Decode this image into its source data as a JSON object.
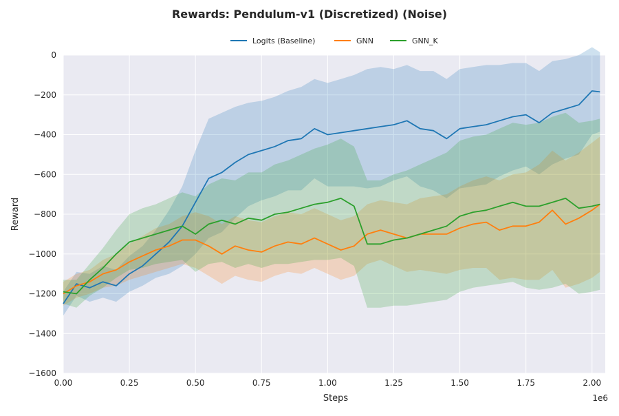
{
  "chart_data": {
    "type": "line",
    "title": "Rewards: Pendulum-v1 (Discretized) (Noise)",
    "xlabel": "Steps",
    "ylabel": "Reward",
    "x_offset_label": "1e6",
    "xlim": [
      0,
      2.05
    ],
    "ylim": [
      -1600,
      0
    ],
    "x_ticks": [
      0,
      0.25,
      0.5,
      0.75,
      1.0,
      1.25,
      1.5,
      1.75,
      2.0
    ],
    "x_tick_labels": [
      "0.00",
      "0.25",
      "0.50",
      "0.75",
      "1.00",
      "1.25",
      "1.50",
      "1.75",
      "2.00"
    ],
    "y_ticks": [
      0,
      -200,
      -400,
      -600,
      -800,
      -1000,
      -1200,
      -1400,
      -1600
    ],
    "y_tick_labels": [
      "0",
      "−200",
      "−400",
      "−600",
      "−800",
      "−1000",
      "−1200",
      "−1400",
      "−1600"
    ],
    "grid": true,
    "legend_position": "top-center",
    "background": "#eaeaf2",
    "series": [
      {
        "name": "Logits (Baseline)",
        "color": "#1f77b4",
        "points": [
          [
            0.0,
            -1250
          ],
          [
            0.05,
            -1150
          ],
          [
            0.1,
            -1170
          ],
          [
            0.15,
            -1140
          ],
          [
            0.2,
            -1160
          ],
          [
            0.25,
            -1100
          ],
          [
            0.3,
            -1060
          ],
          [
            0.35,
            -1000
          ],
          [
            0.4,
            -940
          ],
          [
            0.45,
            -860
          ],
          [
            0.5,
            -740
          ],
          [
            0.55,
            -620
          ],
          [
            0.6,
            -590
          ],
          [
            0.65,
            -540
          ],
          [
            0.7,
            -500
          ],
          [
            0.75,
            -480
          ],
          [
            0.8,
            -460
          ],
          [
            0.85,
            -430
          ],
          [
            0.9,
            -420
          ],
          [
            0.95,
            -370
          ],
          [
            1.0,
            -400
          ],
          [
            1.05,
            -390
          ],
          [
            1.1,
            -380
          ],
          [
            1.15,
            -370
          ],
          [
            1.2,
            -360
          ],
          [
            1.25,
            -350
          ],
          [
            1.3,
            -330
          ],
          [
            1.35,
            -370
          ],
          [
            1.4,
            -380
          ],
          [
            1.45,
            -420
          ],
          [
            1.5,
            -370
          ],
          [
            1.55,
            -360
          ],
          [
            1.6,
            -350
          ],
          [
            1.65,
            -330
          ],
          [
            1.7,
            -310
          ],
          [
            1.75,
            -300
          ],
          [
            1.8,
            -340
          ],
          [
            1.85,
            -290
          ],
          [
            1.9,
            -270
          ],
          [
            1.95,
            -250
          ],
          [
            2.0,
            -180
          ],
          [
            2.03,
            -185
          ]
        ],
        "band_width": [
          60,
          60,
          70,
          80,
          80,
          90,
          100,
          120,
          160,
          200,
          260,
          300,
          300,
          280,
          260,
          250,
          250,
          250,
          260,
          250,
          260,
          270,
          280,
          300,
          300,
          280,
          280,
          290,
          300,
          300,
          300,
          300,
          300,
          280,
          270,
          260,
          260,
          260,
          250,
          250,
          220,
          200
        ]
      },
      {
        "name": "GNN",
        "color": "#ff7f0e",
        "points": [
          [
            0.0,
            -1200
          ],
          [
            0.05,
            -1160
          ],
          [
            0.1,
            -1140
          ],
          [
            0.15,
            -1100
          ],
          [
            0.2,
            -1080
          ],
          [
            0.25,
            -1040
          ],
          [
            0.3,
            -1010
          ],
          [
            0.35,
            -980
          ],
          [
            0.4,
            -960
          ],
          [
            0.45,
            -930
          ],
          [
            0.5,
            -930
          ],
          [
            0.55,
            -960
          ],
          [
            0.6,
            -1000
          ],
          [
            0.65,
            -960
          ],
          [
            0.7,
            -980
          ],
          [
            0.75,
            -990
          ],
          [
            0.8,
            -960
          ],
          [
            0.85,
            -940
          ],
          [
            0.9,
            -950
          ],
          [
            0.95,
            -920
          ],
          [
            1.0,
            -950
          ],
          [
            1.05,
            -980
          ],
          [
            1.1,
            -960
          ],
          [
            1.15,
            -900
          ],
          [
            1.2,
            -880
          ],
          [
            1.25,
            -900
          ],
          [
            1.3,
            -920
          ],
          [
            1.35,
            -900
          ],
          [
            1.4,
            -900
          ],
          [
            1.45,
            -900
          ],
          [
            1.5,
            -870
          ],
          [
            1.55,
            -850
          ],
          [
            1.6,
            -840
          ],
          [
            1.65,
            -880
          ],
          [
            1.7,
            -860
          ],
          [
            1.75,
            -860
          ],
          [
            1.8,
            -840
          ],
          [
            1.85,
            -780
          ],
          [
            1.9,
            -850
          ],
          [
            1.95,
            -820
          ],
          [
            2.0,
            -780
          ],
          [
            2.03,
            -750
          ]
        ],
        "band_width": [
          60,
          60,
          60,
          70,
          80,
          90,
          100,
          110,
          110,
          120,
          140,
          150,
          150,
          150,
          150,
          150,
          150,
          150,
          150,
          150,
          150,
          150,
          150,
          150,
          150,
          160,
          170,
          180,
          190,
          200,
          210,
          220,
          230,
          250,
          260,
          270,
          290,
          300,
          320,
          330,
          340,
          340
        ]
      },
      {
        "name": "GNN_K",
        "color": "#2ca02c",
        "points": [
          [
            0.0,
            -1190
          ],
          [
            0.05,
            -1200
          ],
          [
            0.1,
            -1130
          ],
          [
            0.15,
            -1070
          ],
          [
            0.2,
            -1000
          ],
          [
            0.25,
            -940
          ],
          [
            0.3,
            -920
          ],
          [
            0.35,
            -900
          ],
          [
            0.4,
            -880
          ],
          [
            0.45,
            -860
          ],
          [
            0.5,
            -900
          ],
          [
            0.55,
            -850
          ],
          [
            0.6,
            -830
          ],
          [
            0.65,
            -850
          ],
          [
            0.7,
            -820
          ],
          [
            0.75,
            -830
          ],
          [
            0.8,
            -800
          ],
          [
            0.85,
            -790
          ],
          [
            0.9,
            -770
          ],
          [
            0.95,
            -750
          ],
          [
            1.0,
            -740
          ],
          [
            1.05,
            -720
          ],
          [
            1.1,
            -760
          ],
          [
            1.15,
            -950
          ],
          [
            1.2,
            -950
          ],
          [
            1.25,
            -930
          ],
          [
            1.3,
            -920
          ],
          [
            1.35,
            -900
          ],
          [
            1.4,
            -880
          ],
          [
            1.45,
            -860
          ],
          [
            1.5,
            -810
          ],
          [
            1.55,
            -790
          ],
          [
            1.6,
            -780
          ],
          [
            1.65,
            -760
          ],
          [
            1.7,
            -740
          ],
          [
            1.75,
            -760
          ],
          [
            1.8,
            -760
          ],
          [
            1.85,
            -740
          ],
          [
            1.9,
            -720
          ],
          [
            1.95,
            -770
          ],
          [
            2.0,
            -760
          ],
          [
            2.03,
            -750
          ]
        ],
        "band_width": [
          60,
          70,
          80,
          100,
          120,
          140,
          150,
          150,
          160,
          170,
          190,
          200,
          210,
          220,
          230,
          240,
          250,
          260,
          270,
          280,
          290,
          300,
          300,
          320,
          320,
          330,
          340,
          350,
          360,
          370,
          380,
          380,
          380,
          390,
          400,
          410,
          420,
          430,
          430,
          430,
          430,
          430
        ]
      }
    ]
  }
}
